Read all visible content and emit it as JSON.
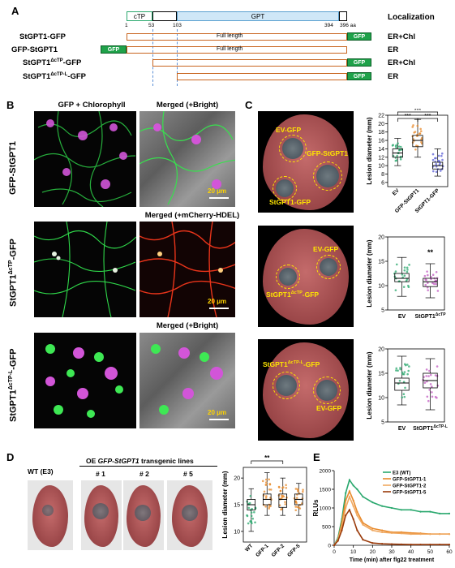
{
  "panel_labels": {
    "a": "A",
    "b": "B",
    "c": "C",
    "d": "D",
    "e": "E"
  },
  "panel_a": {
    "ctp_label": "cTP",
    "gpt_label": "GPT",
    "localization_header": "Localization",
    "positions": [
      "1",
      "53",
      "103",
      "394",
      "396 aa"
    ],
    "constructs": [
      {
        "name": "StGPT1-GFP",
        "body": "Full length",
        "tag": "GFP",
        "loc": "ER+Chl"
      },
      {
        "name": "GFP-StGPT1",
        "body": "Full length",
        "tag": "GFP",
        "loc": "ER"
      },
      {
        "name": "StGPT1",
        "sup": "ΔcTP",
        "suffix": "-GFP",
        "tag": "GFP",
        "loc": "ER+Chl"
      },
      {
        "name": "StGPT1",
        "sup": "ΔcTP-L",
        "suffix": "-GFP",
        "tag": "GFP",
        "loc": "ER"
      }
    ]
  },
  "panel_b": {
    "col1": "GFP + Chlorophyll",
    "col2": "Merged (+Bright)",
    "mid_header": "Merged (+mCherry-HDEL)",
    "bottom_header": "Merged (+Bright)",
    "rows": [
      {
        "name": "GFP-StGPT1",
        "sup": "",
        "suffix": ""
      },
      {
        "name": "StGPT1",
        "sup": "ΔcTP",
        "suffix": "-GFP"
      },
      {
        "name": "StGPT1",
        "sup": "ΔcTP-L",
        "suffix": "-GFP"
      }
    ],
    "scale": "20 μm"
  },
  "panel_c": {
    "leaf1": {
      "labels": [
        "EV-GFP",
        "GFP-StGPT1",
        "StGPT1-GFP"
      ]
    },
    "leaf2": {
      "labels": [
        "EV-GFP",
        "StGPT1",
        "-GFP"
      ],
      "sup": "ΔcTP"
    },
    "leaf3": {
      "labels": [
        "StGPT1",
        "-GFP",
        "EV-GFP"
      ],
      "sup": "ΔcTP-L"
    }
  },
  "panel_d": {
    "wt_label": "WT (E3)",
    "oe_label_prefix": "OE ",
    "oe_label_gene": "GFP-StGPT1",
    "oe_label_suffix": " transgenic lines",
    "lines": [
      "# 1",
      "# 2",
      "# 5"
    ]
  },
  "chart_data": [
    {
      "type": "box",
      "panel": "C1",
      "ylabel": "Lesion diameter (mm)",
      "categories": [
        "EV",
        "GFP-StGPT1",
        "StGPT1-GFP"
      ],
      "yticks": [
        "6",
        "8",
        "10",
        "12",
        "14",
        "16",
        "18",
        "20",
        "22"
      ],
      "ylim": [
        5,
        22
      ],
      "medians": [
        13,
        16,
        10
      ],
      "q1": [
        12,
        14.5,
        9.2
      ],
      "q3": [
        14,
        17.2,
        10.8
      ],
      "min": [
        10,
        12,
        7.5
      ],
      "max": [
        16.5,
        21,
        14
      ],
      "colors": [
        "#2aa86e",
        "#e8892a",
        "#5a5fd6"
      ],
      "significance": [
        "***",
        "***",
        "***"
      ]
    },
    {
      "type": "box",
      "panel": "C2",
      "ylabel": "Lesion diameter (mm)",
      "categories": [
        "EV",
        "StGPT1"
      ],
      "category_sup": [
        "",
        "ΔcTP"
      ],
      "yticks": [
        "5",
        "10",
        "15",
        "20"
      ],
      "ylim": [
        5,
        20
      ],
      "medians": [
        11.5,
        10.8
      ],
      "q1": [
        10.8,
        9.8
      ],
      "q3": [
        12.5,
        11.5
      ],
      "min": [
        7.8,
        7.5
      ],
      "max": [
        15.8,
        14.5
      ],
      "colors": [
        "#2aa86e",
        "#c25bc2"
      ],
      "significance": [
        "**"
      ]
    },
    {
      "type": "box",
      "panel": "C3",
      "ylabel": "Lesion diameter (mm)",
      "categories": [
        "EV",
        "StGPT1"
      ],
      "category_sup": [
        "",
        "ΔcTP-L"
      ],
      "yticks": [
        "5",
        "10",
        "15",
        "20"
      ],
      "ylim": [
        5,
        20
      ],
      "medians": [
        13,
        13.5
      ],
      "q1": [
        11.5,
        12
      ],
      "q3": [
        14,
        15
      ],
      "min": [
        8.5,
        7.5
      ],
      "max": [
        18.5,
        18
      ],
      "colors": [
        "#2aa86e",
        "#c25bc2"
      ]
    },
    {
      "type": "box",
      "panel": "D",
      "ylabel": "Lesion diameter (mm)",
      "categories": [
        "WT",
        "GFP-1",
        "GFP-2",
        "GFP-5"
      ],
      "yticks": [
        "10",
        "15",
        "20"
      ],
      "ylim": [
        8,
        22
      ],
      "medians": [
        15,
        16,
        16,
        16
      ],
      "q1": [
        14,
        15,
        14.5,
        15
      ],
      "q3": [
        16,
        17,
        17,
        17
      ],
      "min": [
        10,
        13,
        13,
        13
      ],
      "max": [
        18,
        21,
        20,
        19
      ],
      "colors": [
        "#2aa86e",
        "#e8892a",
        "#e8892a",
        "#e8892a"
      ],
      "significance": [
        "**"
      ]
    },
    {
      "type": "line",
      "panel": "E",
      "ylabel": "RLUs",
      "xlabel": "Time (min) after flg22 treatment",
      "xticks": [
        "0",
        "10",
        "20",
        "30",
        "40",
        "50",
        "60"
      ],
      "yticks": [
        "0",
        "500",
        "1000",
        "1500",
        "2000"
      ],
      "xlim": [
        0,
        60
      ],
      "ylim": [
        0,
        2000
      ],
      "series": [
        {
          "name": "E3 (WT)",
          "color": "#2aa86e",
          "x": [
            0,
            2,
            4,
            6,
            8,
            10,
            12,
            15,
            20,
            25,
            30,
            35,
            40,
            45,
            50,
            55,
            60
          ],
          "y": [
            0,
            200,
            700,
            1400,
            1750,
            1600,
            1500,
            1300,
            1150,
            1050,
            1000,
            950,
            950,
            900,
            900,
            850,
            850
          ]
        },
        {
          "name": "GFP-StGPT1-1",
          "color": "#e8892a",
          "x": [
            0,
            2,
            4,
            6,
            8,
            10,
            12,
            15,
            20,
            25,
            30,
            35,
            40,
            45,
            50,
            55,
            60
          ],
          "y": [
            0,
            150,
            600,
            1200,
            1450,
            1200,
            900,
            600,
            450,
            400,
            350,
            350,
            330,
            320,
            300,
            300,
            300
          ]
        },
        {
          "name": "GFP-StGPT1-2",
          "color": "#f0a860",
          "x": [
            0,
            2,
            4,
            6,
            8,
            10,
            12,
            15,
            20,
            25,
            30,
            35,
            40,
            45,
            50,
            55,
            60
          ],
          "y": [
            0,
            150,
            500,
            1000,
            1300,
            1050,
            800,
            550,
            400,
            350,
            330,
            320,
            300,
            300,
            300,
            300,
            300
          ]
        },
        {
          "name": "GFP-StGPT1-5",
          "color": "#9a3a0a",
          "x": [
            0,
            2,
            4,
            6,
            8,
            10,
            12,
            15,
            20,
            25,
            30,
            35,
            40,
            45,
            50,
            55,
            60
          ],
          "y": [
            0,
            120,
            400,
            800,
            950,
            700,
            400,
            150,
            60,
            40,
            30,
            25,
            20,
            20,
            20,
            20,
            20
          ]
        }
      ]
    }
  ]
}
